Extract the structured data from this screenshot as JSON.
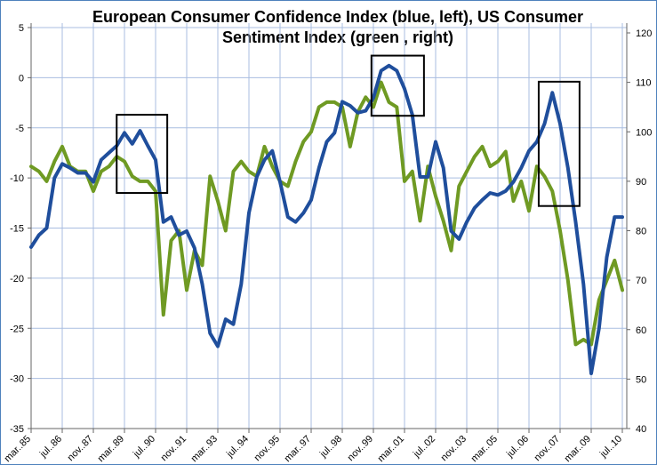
{
  "chart_data": {
    "type": "line",
    "title": "European Consumer Confidence Index (blue, left), US Consumer Sentiment Index (green , right)",
    "title_lines": [
      "European Consumer Confidence Index (blue, left), US Consumer",
      "Sentiment Index (green , right)"
    ],
    "grid": true,
    "x_tick_labels": [
      "mar..85",
      "jul..86",
      "nov..87",
      "mar..89",
      "jul..90",
      "nov..91",
      "mar..93",
      "jul..94",
      "nov..95",
      "mar..97",
      "jul..98",
      "nov..99",
      "mar..01",
      "jul..02",
      "nov..03",
      "mar..05",
      "jul..06",
      "nov..07",
      "mar..09",
      "jul..10"
    ],
    "xlim": [
      "1985-03",
      "2010-07"
    ],
    "y_left": {
      "ylim": [
        -35,
        5
      ],
      "ticks": [
        "-35",
        "-30",
        "-25",
        "-20",
        "-15",
        "-10",
        "-5",
        "0",
        "5"
      ]
    },
    "y_right": {
      "ylim": [
        40,
        120
      ],
      "ticks": [
        "40",
        "50",
        "60",
        "70",
        "80",
        "90",
        "100",
        "110",
        "120"
      ]
    },
    "x": [
      "1985-03",
      "1985-07",
      "1985-11",
      "1986-03",
      "1986-07",
      "1986-11",
      "1987-03",
      "1987-07",
      "1987-11",
      "1988-03",
      "1988-07",
      "1988-11",
      "1989-03",
      "1989-07",
      "1989-11",
      "1990-03",
      "1990-07",
      "1990-11",
      "1991-03",
      "1991-07",
      "1991-11",
      "1992-03",
      "1992-07",
      "1992-11",
      "1993-03",
      "1993-07",
      "1993-11",
      "1994-03",
      "1994-07",
      "1994-11",
      "1995-03",
      "1995-07",
      "1995-11",
      "1996-03",
      "1996-07",
      "1996-11",
      "1997-03",
      "1997-07",
      "1997-11",
      "1998-03",
      "1998-07",
      "1998-11",
      "1999-03",
      "1999-07",
      "1999-11",
      "2000-03",
      "2000-07",
      "2000-11",
      "2001-03",
      "2001-07",
      "2001-11",
      "2002-03",
      "2002-07",
      "2002-11",
      "2003-03",
      "2003-07",
      "2003-11",
      "2004-03",
      "2004-07",
      "2004-11",
      "2005-03",
      "2005-07",
      "2005-11",
      "2006-03",
      "2006-07",
      "2006-11",
      "2007-03",
      "2007-07",
      "2007-11",
      "2008-03",
      "2008-07",
      "2008-11",
      "2009-03",
      "2009-07",
      "2009-11",
      "2010-03",
      "2010-07"
    ],
    "series": [
      {
        "axis": "left",
        "color": "#1f4e9c",
        "values": [
          -16.9,
          -15.7,
          -15,
          -10,
          -8.6,
          -9,
          -9.5,
          -9.5,
          -10.4,
          -8.2,
          -7.5,
          -6.8,
          -5.5,
          -6.6,
          -5.3,
          -6.8,
          -8.2,
          -14.4,
          -13.9,
          -15.7,
          -15.3,
          -17,
          -20.6,
          -25.5,
          -26.8,
          -24.1,
          -24.6,
          -20.6,
          -13.5,
          -9.9,
          -8.2,
          -7.3,
          -10.4,
          -13.9,
          -14.4,
          -13.5,
          -12.2,
          -9,
          -6.4,
          -5.5,
          -2.4,
          -2.8,
          -3.5,
          -3.3,
          -2,
          0.7,
          1.2,
          0.7,
          -1.1,
          -3.7,
          -9.9,
          -9.9,
          -6.4,
          -9,
          -15.3,
          -16.1,
          -14.4,
          -13,
          -12.2,
          -11.5,
          -11.7,
          -11.3,
          -10.4,
          -9,
          -7.3,
          -6.4,
          -4.6,
          -1.5,
          -4.6,
          -9,
          -14.4,
          -20.6,
          -29.5,
          -25,
          -17.9,
          -13.9,
          -13.9
        ]
      },
      {
        "axis": "right",
        "color": "#6f9a23",
        "values": [
          93,
          92,
          90,
          94,
          97,
          93,
          92,
          92,
          88,
          92,
          93,
          95,
          94,
          91,
          90,
          90,
          88,
          63,
          78,
          80,
          68,
          76,
          73,
          91,
          86,
          80,
          92,
          94,
          92,
          91,
          97,
          93,
          90,
          89,
          94,
          98,
          100,
          105,
          106,
          106,
          105,
          97,
          104,
          107,
          105,
          110,
          106,
          105,
          90,
          92,
          82,
          93,
          87,
          82,
          76,
          89,
          92,
          95,
          97,
          93,
          94,
          96,
          86,
          90,
          84,
          93,
          91,
          88,
          80,
          70,
          57,
          58,
          57,
          66,
          70,
          74,
          68
        ]
      }
    ],
    "annotations": [
      {
        "type": "box",
        "x": [
          "1988-11",
          "1991-01"
        ],
        "y_left": [
          -11.5,
          -3.7
        ]
      },
      {
        "type": "box",
        "x": [
          "1999-10",
          "2002-01"
        ],
        "y_left": [
          -3.8,
          2.2
        ]
      },
      {
        "type": "box",
        "x": [
          "2006-12",
          "2008-09"
        ],
        "y_left": [
          -12.8,
          -0.4
        ]
      }
    ]
  }
}
